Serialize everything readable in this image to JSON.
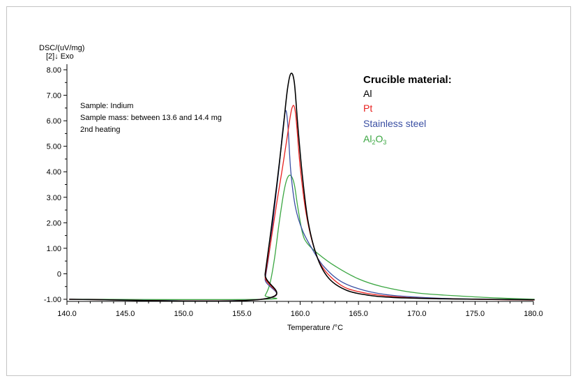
{
  "chart_data": {
    "type": "line",
    "title": "",
    "xlabel": "Temperature /°C",
    "ylabel": "DSC/(uV/mg)",
    "ylabel_sub": "[2]↓ Exo",
    "xlim": [
      140,
      180
    ],
    "ylim": [
      -1,
      8
    ],
    "x_ticks": [
      "140.0",
      "145.0",
      "150.0",
      "155.0",
      "160.0",
      "165.0",
      "170.0",
      "175.0",
      "180.0"
    ],
    "y_ticks": [
      "-1.00",
      "0",
      "1.00",
      "2.00",
      "3.00",
      "4.00",
      "5.00",
      "6.00",
      "7.00",
      "8.00"
    ],
    "sample_info": [
      "Sample: Indium",
      "Sample mass: between 13.6 and 14.4 mg",
      "2nd heating"
    ],
    "legend": {
      "title": "Crucible material:",
      "placement": "top-right",
      "entries": [
        {
          "label": "Al",
          "color": "#000000"
        },
        {
          "label": "Pt",
          "color": "#e8211f"
        },
        {
          "label": "Stainless steel",
          "color": "#3a4fa3"
        },
        {
          "label_main": "Al",
          "label_sub1": "2",
          "label_mid": "O",
          "label_sub2": "3",
          "color": "#3aa641"
        }
      ]
    },
    "series": [
      {
        "name": "Al",
        "color": "#000000",
        "points": [
          [
            140.2,
            -1
          ],
          [
            156.7,
            -1
          ],
          [
            157.0,
            0.0
          ],
          [
            157.5,
            1.7
          ],
          [
            158.0,
            3.5
          ],
          [
            158.5,
            5.5
          ],
          [
            158.9,
            7.2
          ],
          [
            159.2,
            7.85
          ],
          [
            159.5,
            7.5
          ],
          [
            159.8,
            5.8
          ],
          [
            160.2,
            3.8
          ],
          [
            160.7,
            2.0
          ],
          [
            161.5,
            0.6
          ],
          [
            162.5,
            -0.2
          ],
          [
            164.0,
            -0.65
          ],
          [
            166.0,
            -0.85
          ],
          [
            168.0,
            -0.93
          ],
          [
            172.0,
            -0.98
          ],
          [
            176.0,
            -1.0
          ],
          [
            180.1,
            -1.02
          ]
        ]
      },
      {
        "name": "Pt",
        "color": "#e8211f",
        "points": [
          [
            140.2,
            -1
          ],
          [
            156.7,
            -1
          ],
          [
            157.0,
            -0.1
          ],
          [
            157.5,
            1.3
          ],
          [
            158.0,
            2.8
          ],
          [
            158.5,
            4.2
          ],
          [
            158.9,
            5.4
          ],
          [
            159.3,
            6.5
          ],
          [
            159.6,
            6.3
          ],
          [
            160.0,
            4.2
          ],
          [
            160.5,
            2.4
          ],
          [
            161.2,
            1.0
          ],
          [
            162.0,
            0.2
          ],
          [
            163.5,
            -0.45
          ],
          [
            165.0,
            -0.7
          ],
          [
            167.0,
            -0.85
          ],
          [
            170.0,
            -0.95
          ],
          [
            175.0,
            -1.0
          ],
          [
            180.1,
            -1.03
          ]
        ]
      },
      {
        "name": "Stainless steel",
        "color": "#3a4fa3",
        "points": [
          [
            140.2,
            -1
          ],
          [
            156.7,
            -1
          ],
          [
            157.0,
            -0.2
          ],
          [
            157.4,
            1.0
          ],
          [
            157.8,
            2.6
          ],
          [
            158.2,
            4.2
          ],
          [
            158.5,
            5.6
          ],
          [
            158.75,
            6.4
          ],
          [
            158.95,
            5.8
          ],
          [
            159.2,
            4.0
          ],
          [
            159.6,
            2.6
          ],
          [
            160.2,
            1.7
          ],
          [
            161.0,
            1.0
          ],
          [
            162.0,
            0.3
          ],
          [
            163.5,
            -0.3
          ],
          [
            165.5,
            -0.65
          ],
          [
            168.0,
            -0.85
          ],
          [
            172.0,
            -0.96
          ],
          [
            176.0,
            -1.0
          ],
          [
            180.1,
            -1.02
          ]
        ]
      },
      {
        "name": "Al2O3",
        "color": "#3aa641",
        "points": [
          [
            140.2,
            -1
          ],
          [
            156.7,
            -1
          ],
          [
            157.0,
            -0.85
          ],
          [
            157.4,
            -0.4
          ],
          [
            157.8,
            0.6
          ],
          [
            158.2,
            2.0
          ],
          [
            158.6,
            3.2
          ],
          [
            158.9,
            3.75
          ],
          [
            159.2,
            3.85
          ],
          [
            159.5,
            3.5
          ],
          [
            159.8,
            2.6
          ],
          [
            160.2,
            1.6
          ],
          [
            160.6,
            1.2
          ],
          [
            161.5,
            0.8
          ],
          [
            163.0,
            0.3
          ],
          [
            165.0,
            -0.2
          ],
          [
            167.0,
            -0.5
          ],
          [
            170.0,
            -0.75
          ],
          [
            174.0,
            -0.88
          ],
          [
            177.0,
            -0.95
          ],
          [
            180.1,
            -1.0
          ]
        ]
      }
    ]
  }
}
